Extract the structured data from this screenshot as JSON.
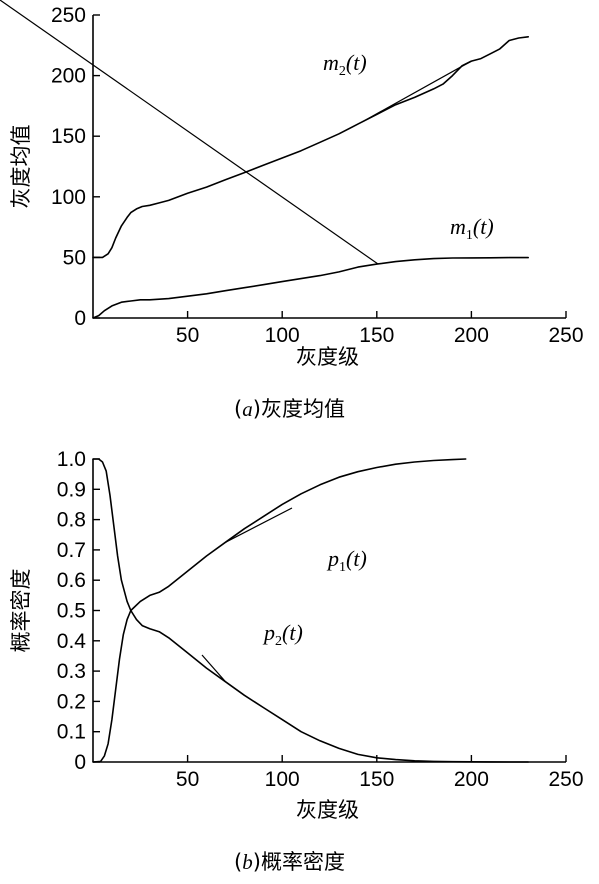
{
  "chart_data": [
    {
      "type": "line",
      "caption_letter": "a",
      "caption_text": "灰度均值",
      "xlabel": "灰度级",
      "ylabel": "灰度均值",
      "xlim": [
        0,
        250
      ],
      "ylim": [
        0,
        250
      ],
      "xticks": [
        50,
        100,
        150,
        200,
        250
      ],
      "yticks": [
        0,
        50,
        100,
        150,
        200,
        250
      ],
      "grid": false,
      "series": [
        {
          "name": "m2(t)",
          "label_main": "m",
          "label_sub": "2",
          "label_arg": "(t)",
          "x": [
            0,
            5,
            8,
            10,
            12,
            15,
            18,
            20,
            23,
            26,
            30,
            35,
            40,
            50,
            60,
            70,
            80,
            90,
            100,
            110,
            120,
            130,
            140,
            150,
            160,
            170,
            180,
            185,
            190,
            195,
            200,
            205,
            210,
            215,
            220,
            225,
            230
          ],
          "y": [
            50,
            50,
            53,
            58,
            66,
            76,
            83,
            87,
            90,
            92,
            93,
            95,
            97,
            103,
            108,
            114,
            120,
            126,
            132,
            138,
            145,
            152,
            160,
            168,
            176,
            182,
            189,
            193,
            200,
            208,
            212,
            214,
            218,
            222,
            229,
            231,
            232
          ]
        },
        {
          "name": "m1(t)",
          "label_main": "m",
          "label_sub": "1",
          "label_arg": "(t)",
          "x": [
            0,
            3,
            6,
            10,
            15,
            20,
            25,
            30,
            40,
            50,
            60,
            70,
            80,
            90,
            100,
            110,
            120,
            130,
            140,
            150,
            160,
            170,
            180,
            190,
            200,
            210,
            220,
            230
          ],
          "y": [
            0,
            2,
            6,
            10,
            13,
            14,
            15,
            15,
            16,
            18,
            20,
            22.5,
            25,
            27.5,
            30,
            32.5,
            35,
            38,
            42,
            44.5,
            46.5,
            48,
            49,
            49.5,
            49.6,
            49.7,
            49.8,
            49.8
          ]
        }
      ]
    },
    {
      "type": "line",
      "caption_letter": "b",
      "caption_text": "概率密度",
      "xlabel": "灰度级",
      "ylabel": "概率密度",
      "xlim": [
        0,
        250
      ],
      "ylim": [
        0,
        1
      ],
      "xticks": [
        50,
        100,
        150,
        200,
        250
      ],
      "yticks": [
        0,
        0.1,
        0.2,
        0.3,
        0.4,
        0.5,
        0.6,
        0.7,
        0.8,
        0.9,
        1.0
      ],
      "ytick_labels": [
        "0",
        "0.1",
        "0.2",
        "0.3",
        "0.4",
        "0.5",
        "0.6",
        "0.7",
        "0.8",
        "0.9",
        "1.0"
      ],
      "grid": false,
      "series": [
        {
          "name": "p1(t)",
          "label_main": "p",
          "label_sub": "1",
          "label_arg": "(t)",
          "x": [
            0,
            4,
            6,
            8,
            10,
            12,
            14,
            16,
            18,
            20,
            25,
            30,
            35,
            40,
            50,
            60,
            70,
            80,
            90,
            100,
            110,
            120,
            130,
            140,
            150,
            160,
            170,
            180,
            190,
            197
          ],
          "y": [
            0,
            0.002,
            0.02,
            0.06,
            0.14,
            0.24,
            0.34,
            0.42,
            0.47,
            0.5,
            0.53,
            0.55,
            0.56,
            0.58,
            0.63,
            0.68,
            0.725,
            0.77,
            0.81,
            0.85,
            0.885,
            0.915,
            0.94,
            0.958,
            0.972,
            0.983,
            0.99,
            0.995,
            0.998,
            1.0
          ]
        },
        {
          "name": "p2(t)",
          "label_main": "p",
          "label_sub": "2",
          "label_arg": "(t)",
          "x": [
            0,
            3,
            5,
            7,
            9,
            11,
            13,
            15,
            18,
            20,
            23,
            26,
            30,
            35,
            40,
            50,
            60,
            70,
            80,
            90,
            100,
            110,
            120,
            130,
            140,
            150,
            160,
            170,
            180,
            190,
            200,
            210,
            220,
            230
          ],
          "y": [
            1.0,
            1.0,
            0.99,
            0.96,
            0.88,
            0.78,
            0.68,
            0.6,
            0.53,
            0.5,
            0.47,
            0.45,
            0.44,
            0.43,
            0.41,
            0.36,
            0.31,
            0.265,
            0.22,
            0.18,
            0.14,
            0.1,
            0.07,
            0.045,
            0.025,
            0.014,
            0.008,
            0.004,
            0.002,
            0.001,
            0.0005,
            0.0002,
            0.0001,
            0.0
          ]
        }
      ]
    }
  ]
}
